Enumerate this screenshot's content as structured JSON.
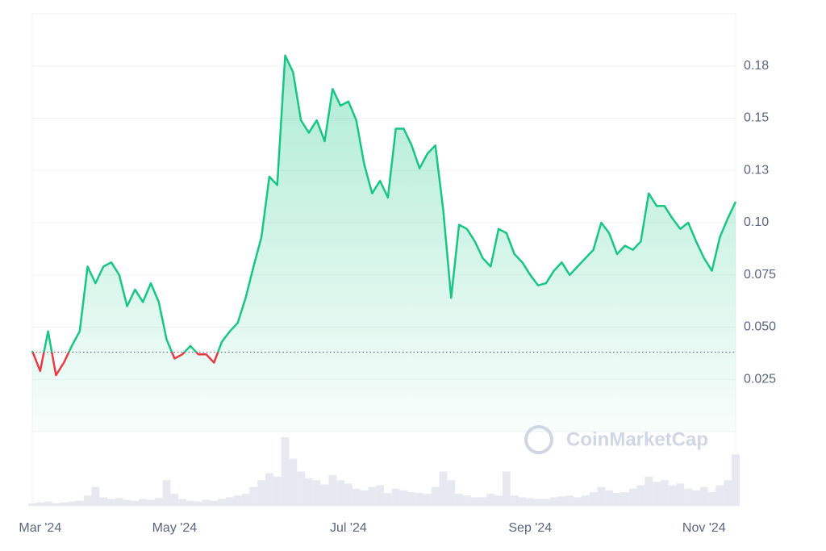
{
  "chart_data": {
    "type": "line",
    "watermark": "CoinMarketCap",
    "categories": [
      null,
      "Mar '24",
      null,
      null,
      null,
      null,
      null,
      null,
      null,
      null,
      null,
      null,
      null,
      null,
      null,
      null,
      null,
      null,
      "May '24",
      null,
      null,
      null,
      null,
      null,
      null,
      null,
      null,
      null,
      null,
      null,
      null,
      null,
      null,
      null,
      null,
      null,
      null,
      null,
      null,
      null,
      "Jul '24",
      null,
      null,
      null,
      null,
      null,
      null,
      null,
      null,
      null,
      null,
      null,
      null,
      null,
      null,
      null,
      null,
      null,
      null,
      null,
      null,
      null,
      null,
      "Sep '24",
      null,
      null,
      null,
      null,
      null,
      null,
      null,
      null,
      null,
      null,
      null,
      null,
      null,
      null,
      null,
      null,
      null,
      null,
      null,
      null,
      null,
      "Nov '24",
      null,
      null,
      null,
      null
    ],
    "series": [
      {
        "color": "#16c784",
        "below_color": "#ea3943",
        "values": [
          0.0386,
          0.029,
          0.048,
          0.027,
          0.033,
          0.041,
          0.048,
          0.079,
          0.071,
          0.079,
          0.081,
          0.075,
          0.06,
          0.068,
          0.062,
          0.071,
          0.062,
          0.044,
          0.035,
          0.037,
          0.041,
          0.037,
          0.037,
          0.033,
          0.043,
          0.048,
          0.052,
          0.064,
          0.079,
          0.093,
          0.122,
          0.118,
          0.18,
          0.172,
          0.149,
          0.143,
          0.149,
          0.139,
          0.164,
          0.156,
          0.158,
          0.149,
          0.128,
          0.114,
          0.12,
          0.112,
          0.145,
          0.145,
          0.137,
          0.126,
          0.133,
          0.137,
          0.106,
          0.064,
          0.099,
          0.097,
          0.091,
          0.083,
          0.079,
          0.097,
          0.095,
          0.085,
          0.081,
          0.075,
          0.07,
          0.071,
          0.077,
          0.081,
          0.075,
          0.079,
          0.083,
          0.087,
          0.1,
          0.095,
          0.085,
          0.089,
          0.087,
          0.091,
          0.114,
          0.108,
          0.108,
          0.102,
          0.097,
          0.1,
          0.091,
          0.083,
          0.077,
          0.093,
          0.102,
          0.11
        ]
      }
    ],
    "baseline": 0.038,
    "volume": [
      3,
      4,
      5,
      3,
      4,
      5,
      6,
      12,
      22,
      10,
      8,
      9,
      7,
      6,
      8,
      7,
      9,
      30,
      14,
      8,
      6,
      5,
      7,
      6,
      8,
      10,
      12,
      14,
      22,
      30,
      38,
      34,
      80,
      55,
      40,
      32,
      30,
      25,
      36,
      30,
      26,
      20,
      18,
      22,
      24,
      15,
      20,
      18,
      16,
      15,
      14,
      22,
      40,
      30,
      14,
      12,
      10,
      10,
      14,
      12,
      40,
      12,
      10,
      9,
      8,
      8,
      10,
      11,
      12,
      10,
      12,
      16,
      22,
      18,
      15,
      16,
      20,
      24,
      34,
      28,
      30,
      24,
      26,
      20,
      18,
      22,
      16,
      24,
      30,
      60
    ],
    "ylim": [
      0,
      0.2
    ],
    "yticks": [
      {
        "value": 0.025,
        "label": "0.025"
      },
      {
        "value": 0.05,
        "label": "0.050"
      },
      0.075,
      {
        "value": 0.1,
        "label": "0.10"
      },
      {
        "value": 0.125,
        "label": "0.13"
      },
      0.15,
      {
        "value": 0.175,
        "label": "0.18"
      }
    ],
    "grid": true
  }
}
